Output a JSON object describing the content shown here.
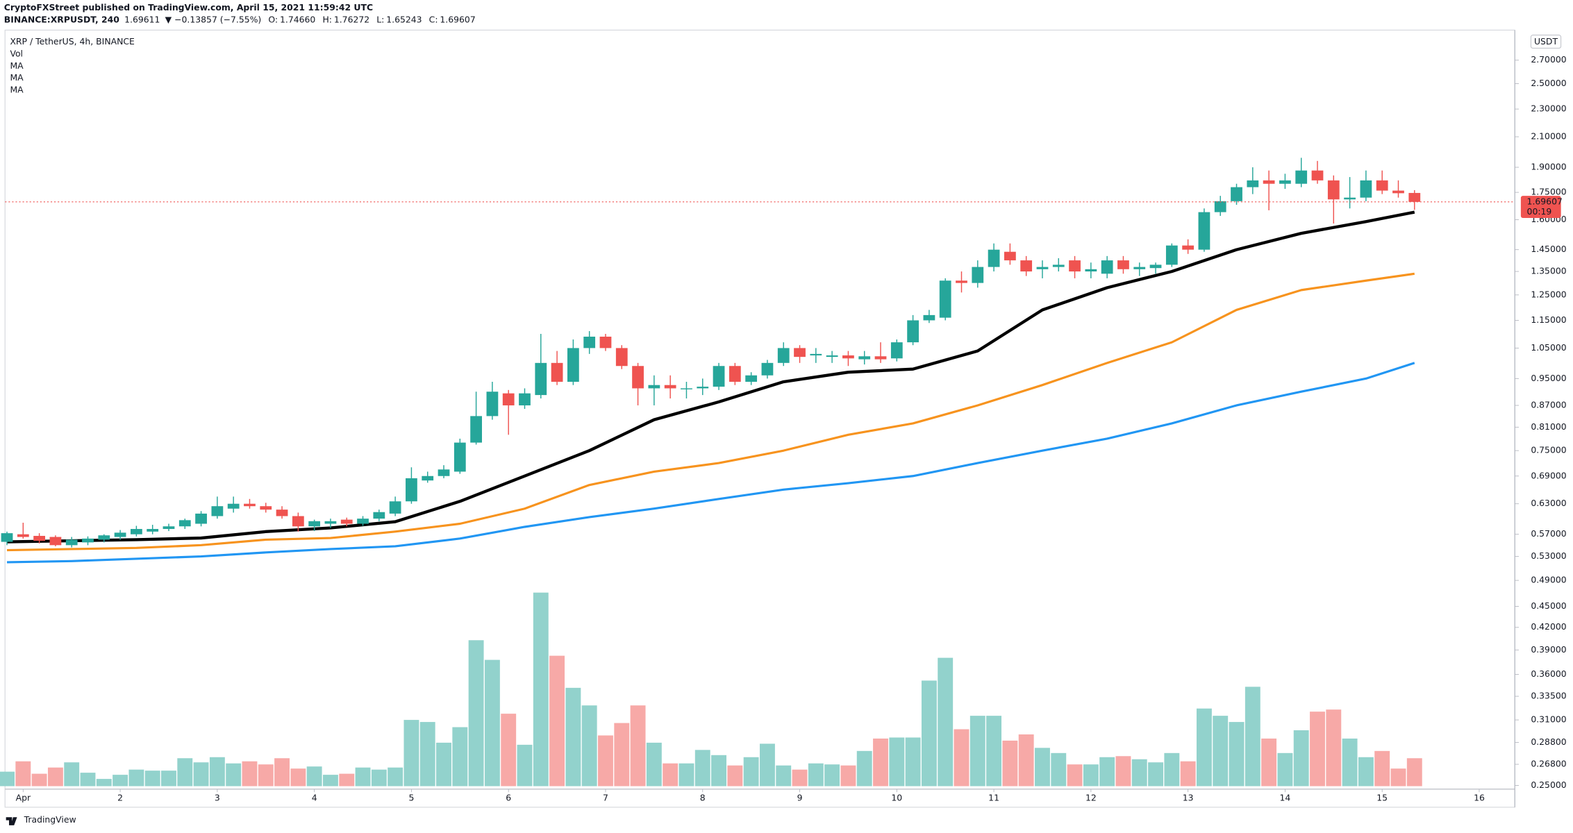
{
  "header": {
    "publisher": "CryptoFXStreet published on TradingView.com, April 15, 2021 11:59:42 UTC"
  },
  "symbol_line": {
    "symbol": "BINANCE:XRPUSDT, 240",
    "last": "1.69611",
    "change": "▼ −0.13857 (−7.55%)",
    "ohlc": [
      {
        "label": "O:",
        "value": "1.74660"
      },
      {
        "label": "H:",
        "value": "1.76272"
      },
      {
        "label": "L:",
        "value": "1.65243"
      },
      {
        "label": "C:",
        "value": "1.69607"
      }
    ]
  },
  "footer": "TradingView",
  "chart_data": {
    "type": "candlestick",
    "title": "XRP / TetherUS, 4h, BINANCE",
    "volume_name": "Vol",
    "currency": "USDT",
    "last_price_label": "1.69607",
    "countdown": "00:19",
    "log_scale": true,
    "up_color": "#26a69a",
    "down_color": "#ef5350",
    "volume_up_color": "#92d2cc",
    "volume_down_color": "#f7a9a7",
    "x": [
      -1,
      0,
      1,
      2,
      3,
      4,
      5,
      6,
      7,
      8,
      9,
      10,
      11,
      12,
      13,
      14,
      15,
      16,
      17,
      18,
      19,
      20,
      21,
      22,
      23,
      24,
      25,
      26,
      27,
      28,
      29,
      30,
      31,
      32,
      33,
      34,
      35,
      36,
      37,
      38,
      39,
      40,
      41,
      42,
      43,
      44,
      45,
      46,
      47,
      48,
      49,
      50,
      51,
      52,
      53,
      54,
      55,
      56,
      57,
      58,
      59,
      60,
      61,
      62,
      63,
      64,
      65,
      66,
      67,
      68,
      69,
      70,
      71,
      72,
      73,
      74,
      75,
      76,
      77,
      78,
      79,
      80,
      81,
      82,
      83,
      84,
      85,
      86
    ],
    "open": [
      0.556,
      0.57,
      0.567,
      0.565,
      0.55,
      0.555,
      0.56,
      0.565,
      0.57,
      0.575,
      0.58,
      0.585,
      0.59,
      0.605,
      0.62,
      0.63,
      0.625,
      0.618,
      0.605,
      0.585,
      0.59,
      0.598,
      0.59,
      0.6,
      0.61,
      0.635,
      0.68,
      0.69,
      0.7,
      0.77,
      0.84,
      0.905,
      0.87,
      0.9,
      1.0,
      0.94,
      1.05,
      1.09,
      1.05,
      0.99,
      0.92,
      0.93,
      0.918,
      0.92,
      0.925,
      0.99,
      0.94,
      0.96,
      1.0,
      1.05,
      1.025,
      1.02,
      1.025,
      1.012,
      1.022,
      1.015,
      1.07,
      1.15,
      1.16,
      1.31,
      1.3,
      1.37,
      1.44,
      1.4,
      1.36,
      1.37,
      1.4,
      1.35,
      1.34,
      1.4,
      1.36,
      1.365,
      1.38,
      1.47,
      1.45,
      1.64,
      1.7,
      1.78,
      1.82,
      1.8,
      1.8,
      1.88,
      1.82,
      1.71,
      1.72,
      1.82,
      1.76,
      1.7466
    ],
    "high": [
      0.575,
      0.592,
      0.572,
      0.568,
      0.565,
      0.566,
      0.57,
      0.578,
      0.586,
      0.588,
      0.59,
      0.6,
      0.615,
      0.645,
      0.645,
      0.64,
      0.632,
      0.625,
      0.612,
      0.598,
      0.6,
      0.602,
      0.605,
      0.618,
      0.645,
      0.71,
      0.7,
      0.715,
      0.78,
      0.91,
      0.94,
      0.915,
      0.92,
      1.1,
      1.04,
      1.08,
      1.11,
      1.1,
      1.06,
      1.0,
      0.96,
      0.96,
      0.94,
      0.95,
      1.0,
      1.0,
      0.97,
      1.01,
      1.07,
      1.06,
      1.05,
      1.04,
      1.04,
      1.04,
      1.07,
      1.08,
      1.17,
      1.19,
      1.32,
      1.35,
      1.4,
      1.48,
      1.48,
      1.42,
      1.4,
      1.41,
      1.42,
      1.39,
      1.42,
      1.42,
      1.39,
      1.39,
      1.48,
      1.5,
      1.66,
      1.73,
      1.8,
      1.9,
      1.88,
      1.86,
      1.96,
      1.94,
      1.85,
      1.84,
      1.88,
      1.88,
      1.82,
      1.76272
    ],
    "low": [
      0.55,
      0.562,
      0.553,
      0.548,
      0.546,
      0.55,
      0.555,
      0.56,
      0.566,
      0.57,
      0.576,
      0.58,
      0.585,
      0.6,
      0.612,
      0.62,
      0.612,
      0.6,
      0.575,
      0.576,
      0.582,
      0.585,
      0.586,
      0.595,
      0.605,
      0.63,
      0.675,
      0.685,
      0.695,
      0.765,
      0.83,
      0.79,
      0.86,
      0.89,
      0.93,
      0.93,
      1.03,
      1.04,
      0.98,
      0.87,
      0.87,
      0.89,
      0.89,
      0.9,
      0.915,
      0.93,
      0.93,
      0.95,
      0.99,
      1.0,
      1.0,
      1.0,
      0.99,
      0.995,
      1.0,
      1.005,
      1.06,
      1.14,
      1.15,
      1.26,
      1.28,
      1.35,
      1.38,
      1.33,
      1.32,
      1.35,
      1.32,
      1.32,
      1.32,
      1.34,
      1.33,
      1.34,
      1.37,
      1.43,
      1.44,
      1.62,
      1.68,
      1.74,
      1.65,
      1.77,
      1.78,
      1.8,
      1.58,
      1.66,
      1.7,
      1.74,
      1.72,
      1.65243
    ],
    "close": [
      0.572,
      0.565,
      0.558,
      0.55,
      0.56,
      0.562,
      0.568,
      0.573,
      0.58,
      0.58,
      0.585,
      0.597,
      0.61,
      0.625,
      0.63,
      0.625,
      0.618,
      0.605,
      0.585,
      0.595,
      0.595,
      0.59,
      0.6,
      0.613,
      0.635,
      0.685,
      0.69,
      0.705,
      0.77,
      0.84,
      0.91,
      0.87,
      0.905,
      1.0,
      0.94,
      1.05,
      1.09,
      1.05,
      0.99,
      0.92,
      0.93,
      0.92,
      0.92,
      0.925,
      0.99,
      0.94,
      0.96,
      1.0,
      1.05,
      1.02,
      1.03,
      1.025,
      1.015,
      1.022,
      1.012,
      1.07,
      1.15,
      1.17,
      1.31,
      1.3,
      1.37,
      1.45,
      1.4,
      1.35,
      1.37,
      1.38,
      1.35,
      1.36,
      1.4,
      1.36,
      1.37,
      1.38,
      1.47,
      1.45,
      1.64,
      1.7,
      1.78,
      1.82,
      1.8,
      1.82,
      1.88,
      1.82,
      1.71,
      1.72,
      1.82,
      1.76,
      1.745,
      1.69607
    ],
    "volume": [
      14,
      24,
      12,
      18,
      23,
      13,
      7,
      11,
      16,
      15,
      15,
      27,
      23,
      28,
      22,
      24,
      21,
      27,
      17,
      19,
      11,
      12,
      18,
      16,
      18,
      64,
      62,
      42,
      57,
      141,
      122,
      70,
      40,
      187,
      126,
      95,
      78,
      49,
      61,
      78,
      42,
      22,
      22,
      35,
      30,
      20,
      28,
      41,
      20,
      16,
      22,
      21,
      20,
      34,
      46,
      47,
      47,
      102,
      124,
      55,
      68,
      68,
      44,
      50,
      37,
      32,
      21,
      21,
      28,
      29,
      26,
      23,
      32,
      24,
      75,
      68,
      62,
      96,
      46,
      32,
      54,
      72,
      74,
      46,
      28,
      34,
      17,
      27
    ],
    "moving_averages": [
      {
        "name": "MA",
        "color": "#000000",
        "x": [
          -1,
          3,
          7,
          11,
          15,
          19,
          23,
          27,
          31,
          35,
          39,
          43,
          47,
          51,
          55,
          59,
          63,
          67,
          71,
          75,
          79,
          83,
          86
        ],
        "values": [
          0.556,
          0.558,
          0.56,
          0.563,
          0.575,
          0.582,
          0.594,
          0.635,
          0.69,
          0.75,
          0.83,
          0.88,
          0.94,
          0.97,
          0.98,
          1.04,
          1.19,
          1.28,
          1.35,
          1.45,
          1.53,
          1.59,
          1.64
        ]
      },
      {
        "name": "MA",
        "color": "#f7931e",
        "x": [
          -1,
          3,
          7,
          11,
          15,
          19,
          23,
          27,
          31,
          35,
          39,
          43,
          47,
          51,
          55,
          59,
          63,
          67,
          71,
          75,
          79,
          83,
          86
        ],
        "values": [
          0.541,
          0.543,
          0.545,
          0.55,
          0.56,
          0.563,
          0.575,
          0.59,
          0.62,
          0.67,
          0.7,
          0.72,
          0.75,
          0.79,
          0.82,
          0.87,
          0.93,
          1.0,
          1.07,
          1.19,
          1.27,
          1.31,
          1.34
        ]
      },
      {
        "name": "MA",
        "color": "#2196f3",
        "x": [
          -1,
          3,
          7,
          11,
          15,
          19,
          23,
          27,
          31,
          35,
          39,
          43,
          47,
          51,
          55,
          59,
          63,
          67,
          71,
          75,
          79,
          83,
          86
        ],
        "values": [
          0.52,
          0.522,
          0.526,
          0.53,
          0.537,
          0.543,
          0.548,
          0.562,
          0.584,
          0.603,
          0.62,
          0.64,
          0.66,
          0.674,
          0.69,
          0.72,
          0.75,
          0.78,
          0.82,
          0.87,
          0.91,
          0.95,
          1.0
        ]
      }
    ],
    "xlim": [
      -1.12,
      92.2
    ],
    "xticks": [
      {
        "value": 0,
        "label": "Apr"
      },
      {
        "value": 6,
        "label": "2"
      },
      {
        "value": 12,
        "label": "3"
      },
      {
        "value": 18,
        "label": "4"
      },
      {
        "value": 24,
        "label": "5"
      },
      {
        "value": 30,
        "label": "6"
      },
      {
        "value": 36,
        "label": "7"
      },
      {
        "value": 42,
        "label": "8"
      },
      {
        "value": 48,
        "label": "9"
      },
      {
        "value": 54,
        "label": "10"
      },
      {
        "value": 60,
        "label": "11"
      },
      {
        "value": 66,
        "label": "12"
      },
      {
        "value": 72,
        "label": "13"
      },
      {
        "value": 78,
        "label": "14"
      },
      {
        "value": 84,
        "label": "15"
      },
      {
        "value": 90,
        "label": "16"
      }
    ],
    "ylim": [
      0.247,
      2.98
    ],
    "yticks": [
      {
        "value": 2.7,
        "label": "2.70000"
      },
      {
        "value": 2.5,
        "label": "2.50000"
      },
      {
        "value": 2.3,
        "label": "2.30000"
      },
      {
        "value": 2.1,
        "label": "2.10000"
      },
      {
        "value": 1.9,
        "label": "1.90000"
      },
      {
        "value": 1.75,
        "label": "1.75000"
      },
      {
        "value": 1.6,
        "label": "1.60000"
      },
      {
        "value": 1.45,
        "label": "1.45000"
      },
      {
        "value": 1.35,
        "label": "1.35000"
      },
      {
        "value": 1.25,
        "label": "1.25000"
      },
      {
        "value": 1.15,
        "label": "1.15000"
      },
      {
        "value": 1.05,
        "label": "1.05000"
      },
      {
        "value": 0.95,
        "label": "0.95000"
      },
      {
        "value": 0.87,
        "label": "0.87000"
      },
      {
        "value": 0.81,
        "label": "0.81000"
      },
      {
        "value": 0.75,
        "label": "0.75000"
      },
      {
        "value": 0.69,
        "label": "0.69000"
      },
      {
        "value": 0.63,
        "label": "0.63000"
      },
      {
        "value": 0.57,
        "label": "0.57000"
      },
      {
        "value": 0.53,
        "label": "0.53000"
      },
      {
        "value": 0.49,
        "label": "0.49000"
      },
      {
        "value": 0.45,
        "label": "0.45000"
      },
      {
        "value": 0.42,
        "label": "0.42000"
      },
      {
        "value": 0.39,
        "label": "0.39000"
      },
      {
        "value": 0.36,
        "label": "0.36000"
      },
      {
        "value": 0.335,
        "label": "0.33500"
      },
      {
        "value": 0.31,
        "label": "0.31000"
      },
      {
        "value": 0.288,
        "label": "0.28800"
      },
      {
        "value": 0.268,
        "label": "0.26800"
      },
      {
        "value": 0.25,
        "label": "0.25000"
      }
    ]
  }
}
